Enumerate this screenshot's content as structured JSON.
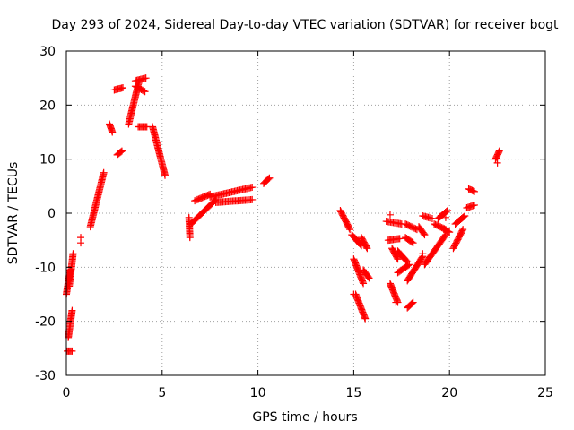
{
  "chart_data": {
    "type": "scatter",
    "title": "Day 293 of 2024, Sidereal Day-to-day VTEC variation (SDTVAR) for receiver bogt",
    "xlabel": "GPS time / hours",
    "ylabel": "SDTVAR / TECUs",
    "xlim": [
      0,
      25
    ],
    "ylim": [
      -30,
      30
    ],
    "xticks": [
      "0",
      "5",
      "10",
      "15",
      "20",
      "25"
    ],
    "yticks": [
      "30",
      "20",
      "10",
      "0",
      "-10",
      "-20",
      "-30"
    ],
    "grid": true,
    "marker": "plus",
    "color": "#ff0000",
    "segments": [
      {
        "x": [
          0.05,
          0.3
        ],
        "y": [
          -25.5,
          -25.5
        ]
      },
      {
        "x": [
          0.1,
          0.3
        ],
        "y": [
          -23,
          -18
        ]
      },
      {
        "x": [
          0.0,
          0.2
        ],
        "y": [
          -15,
          -10.5
        ]
      },
      {
        "x": [
          0.15,
          0.35
        ],
        "y": [
          -13.5,
          -7.5
        ]
      },
      {
        "x": [
          1.25,
          1.95
        ],
        "y": [
          -2.5,
          7.5
        ]
      },
      {
        "x": [
          2.25,
          2.4
        ],
        "y": [
          16.5,
          15
        ]
      },
      {
        "x": [
          2.5,
          2.95
        ],
        "y": [
          22.8,
          23.2
        ]
      },
      {
        "x": [
          2.65,
          2.9
        ],
        "y": [
          10.8,
          11.5
        ]
      },
      {
        "x": [
          3.25,
          3.8
        ],
        "y": [
          16.5,
          24.5
        ]
      },
      {
        "x": [
          3.6,
          4.15
        ],
        "y": [
          24.5,
          25
        ]
      },
      {
        "x": [
          3.6,
          4.1
        ],
        "y": [
          23.5,
          22.5
        ]
      },
      {
        "x": [
          3.75,
          4.2
        ],
        "y": [
          16,
          16
        ]
      },
      {
        "x": [
          4.5,
          5.15
        ],
        "y": [
          16,
          7
        ]
      },
      {
        "x": [
          6.4,
          6.45
        ],
        "y": [
          -0.8,
          -4.5
        ]
      },
      {
        "x": [
          6.5,
          7.8
        ],
        "y": [
          -2,
          2.5
        ]
      },
      {
        "x": [
          6.7,
          7.5
        ],
        "y": [
          2.3,
          3.5
        ]
      },
      {
        "x": [
          7.5,
          9.7
        ],
        "y": [
          3,
          4.8
        ]
      },
      {
        "x": [
          7.8,
          9.7
        ],
        "y": [
          2,
          2.5
        ]
      },
      {
        "x": [
          10.3,
          10.6
        ],
        "y": [
          5.5,
          6.5
        ]
      },
      {
        "x": [
          14.3,
          14.8
        ],
        "y": [
          0.5,
          -3
        ]
      },
      {
        "x": [
          14.9,
          15.4
        ],
        "y": [
          -4,
          -6
        ]
      },
      {
        "x": [
          15.0,
          15.5
        ],
        "y": [
          -8.5,
          -13
        ]
      },
      {
        "x": [
          15.1,
          15.6
        ],
        "y": [
          -15,
          -19.5
        ]
      },
      {
        "x": [
          15.4,
          15.7
        ],
        "y": [
          -4.5,
          -6.5
        ]
      },
      {
        "x": [
          15.5,
          15.8
        ],
        "y": [
          -10.5,
          -12
        ]
      },
      {
        "x": [
          16.7,
          17.5
        ],
        "y": [
          -1.5,
          -2
        ]
      },
      {
        "x": [
          16.8,
          17.4
        ],
        "y": [
          -5,
          -4.7
        ]
      },
      {
        "x": [
          16.9,
          17.3
        ],
        "y": [
          -13,
          -16.5
        ]
      },
      {
        "x": [
          17.0,
          17.3
        ],
        "y": [
          -6.5,
          -8.5
        ]
      },
      {
        "x": [
          17.3,
          17.8
        ],
        "y": [
          -7,
          -9
        ]
      },
      {
        "x": [
          17.3,
          17.9
        ],
        "y": [
          -11,
          -9.5
        ]
      },
      {
        "x": [
          17.7,
          18.1
        ],
        "y": [
          -4.5,
          -5.5
        ]
      },
      {
        "x": [
          17.7,
          18.3
        ],
        "y": [
          -2,
          -3
        ]
      },
      {
        "x": [
          17.8,
          18.6
        ],
        "y": [
          -12.5,
          -8
        ]
      },
      {
        "x": [
          17.8,
          18.1
        ],
        "y": [
          -17.5,
          -16.5
        ]
      },
      {
        "x": [
          18.4,
          18.7
        ],
        "y": [
          -2.5,
          -4
        ]
      },
      {
        "x": [
          18.6,
          19.1
        ],
        "y": [
          -0.5,
          -1
        ]
      },
      {
        "x": [
          18.7,
          19.8
        ],
        "y": [
          -9.5,
          -4
        ]
      },
      {
        "x": [
          19.2,
          19.8
        ],
        "y": [
          -2,
          -3
        ]
      },
      {
        "x": [
          19.4,
          19.9
        ],
        "y": [
          -1,
          0.5
        ]
      },
      {
        "x": [
          19.7,
          20.0
        ],
        "y": [
          -3,
          -3.5
        ]
      },
      {
        "x": [
          20.2,
          20.7
        ],
        "y": [
          -6.5,
          -3
        ]
      },
      {
        "x": [
          20.3,
          20.8
        ],
        "y": [
          -2,
          -0.5
        ]
      },
      {
        "x": [
          20.9,
          21.3
        ],
        "y": [
          1,
          1.5
        ]
      },
      {
        "x": [
          21.0,
          21.3
        ],
        "y": [
          4.5,
          4
        ]
      },
      {
        "x": [
          22.4,
          22.6
        ],
        "y": [
          10,
          11.5
        ]
      }
    ],
    "points": [
      {
        "x": 0.75,
        "y": -4.5
      },
      {
        "x": 0.75,
        "y": -5.5
      },
      {
        "x": 15.0,
        "y": -15
      },
      {
        "x": 16.9,
        "y": -0.3
      },
      {
        "x": 17.2,
        "y": -16.5
      },
      {
        "x": 18.6,
        "y": -7.5
      },
      {
        "x": 19.8,
        "y": -0.8
      },
      {
        "x": 22.5,
        "y": 9.3
      }
    ]
  }
}
